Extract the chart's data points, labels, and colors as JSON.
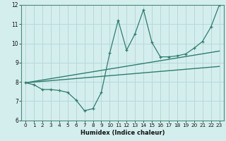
{
  "xlabel": "Humidex (Indice chaleur)",
  "xlim": [
    -0.5,
    23.5
  ],
  "ylim": [
    6,
    12
  ],
  "xticks": [
    0,
    1,
    2,
    3,
    4,
    5,
    6,
    7,
    8,
    9,
    10,
    11,
    12,
    13,
    14,
    15,
    16,
    17,
    18,
    19,
    20,
    21,
    22,
    23
  ],
  "yticks": [
    6,
    7,
    8,
    9,
    10,
    11,
    12
  ],
  "bg_color": "#d4eeee",
  "line_color": "#2e7d6e",
  "grid_color": "#b8d8d8",
  "main_line_x": [
    0,
    1,
    2,
    3,
    4,
    5,
    6,
    7,
    8,
    9,
    10,
    11,
    12,
    13,
    14,
    15,
    16,
    17,
    18,
    19,
    20,
    21,
    22,
    23
  ],
  "main_line_y": [
    7.95,
    7.85,
    7.6,
    7.6,
    7.55,
    7.45,
    7.05,
    6.5,
    6.6,
    7.45,
    9.5,
    11.2,
    9.65,
    10.5,
    11.75,
    10.05,
    9.3,
    9.3,
    9.35,
    9.45,
    9.75,
    10.1,
    10.85,
    12.0
  ],
  "trend1_x": [
    0,
    23
  ],
  "trend1_y": [
    7.95,
    8.8
  ],
  "trend2_x": [
    0,
    23
  ],
  "trend2_y": [
    7.95,
    9.6
  ],
  "xlabel_fontsize": 6.0,
  "tick_fontsize": 5.2
}
